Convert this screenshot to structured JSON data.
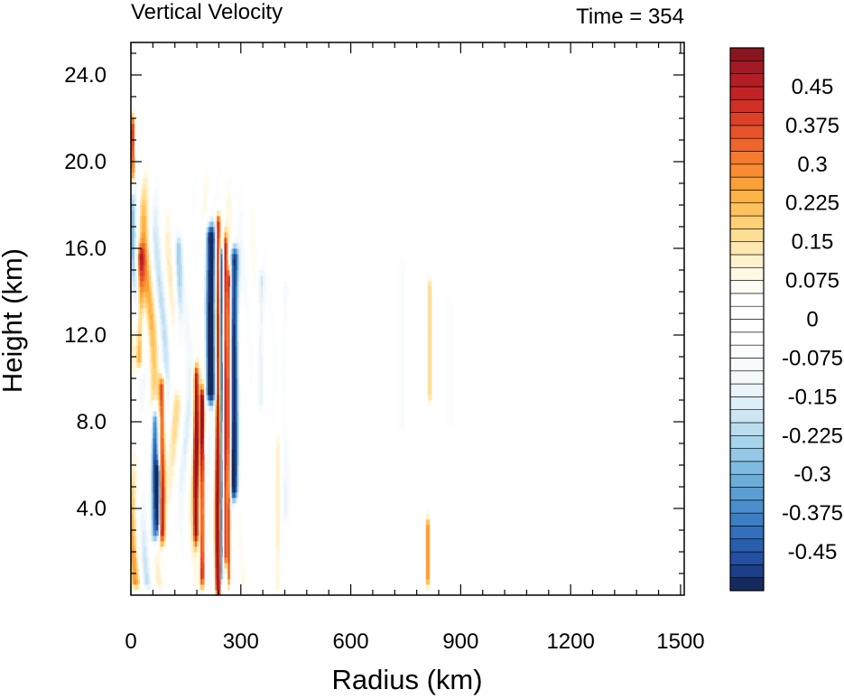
{
  "chart_data": {
    "type": "heatmap",
    "title": "Vertical Velocity",
    "subtitle": "Time = 354",
    "xlabel": "Radius (km)",
    "ylabel": "Height (km)",
    "xlim": [
      0,
      1510
    ],
    "ylim": [
      0,
      25.5
    ],
    "x_ticks": [
      0,
      300,
      600,
      900,
      1200,
      1500
    ],
    "x_tick_labels": [
      "0",
      "300",
      "600",
      "900",
      "1200",
      "1500"
    ],
    "y_ticks": [
      4,
      8,
      12,
      16,
      20,
      24
    ],
    "y_tick_labels": [
      "4.0",
      "8.0",
      "12.0",
      "16.0",
      "20.0",
      "24.0"
    ],
    "colorbar": {
      "levels": [
        -0.525,
        -0.5,
        -0.475,
        -0.45,
        -0.425,
        -0.4,
        -0.375,
        -0.35,
        -0.325,
        -0.3,
        -0.275,
        -0.25,
        -0.225,
        -0.2,
        -0.175,
        -0.15,
        -0.125,
        -0.1,
        -0.075,
        -0.05,
        -0.025,
        0,
        0.025,
        0.05,
        0.075,
        0.1,
        0.125,
        0.15,
        0.175,
        0.2,
        0.225,
        0.25,
        0.275,
        0.3,
        0.325,
        0.35,
        0.375,
        0.4,
        0.425,
        0.45,
        0.475,
        0.5,
        0.525
      ],
      "labels": [
        "-0.45",
        "-0.375",
        "-0.3",
        "-0.225",
        "-0.15",
        "-0.075",
        "0",
        "0.075",
        "0.15",
        "0.225",
        "0.3",
        "0.375",
        "0.45"
      ],
      "label_values": [
        -0.45,
        -0.375,
        -0.3,
        -0.225,
        -0.15,
        -0.075,
        0,
        0.075,
        0.15,
        0.225,
        0.3,
        0.375,
        0.45
      ],
      "colors": [
        "#172a5e",
        "#1d3f87",
        "#2350a0",
        "#2a5fae",
        "#336fba",
        "#3c7fc4",
        "#4a8fcc",
        "#5a9fd4",
        "#6cadda",
        "#7fbbe0",
        "#93c8e6",
        "#a7d3eb",
        "#bbddf0",
        "#cde6f4",
        "#ddeef8",
        "#eaf4fa",
        "#f3f9fc",
        "#f8fbfd",
        "#fcfdfe",
        "#ffffff",
        "#ffffff",
        "#ffffff",
        "#ffffff",
        "#fffdf3",
        "#fff8e3",
        "#fff1cc",
        "#ffe8b0",
        "#ffdd93",
        "#ffd076",
        "#ffc25d",
        "#fdb246",
        "#fca039",
        "#fa8c33",
        "#f57a2f",
        "#ee662c",
        "#e6532a",
        "#dc4128",
        "#d03026",
        "#c42325",
        "#b51d25",
        "#a31a24",
        "#8a1620"
      ]
    },
    "field_features": [
      {
        "sign": 1,
        "r_center": 238,
        "r_halfwidth": 7,
        "z_bottom": 0.5,
        "z_top": 17.0,
        "amplitude": 0.6
      },
      {
        "sign": -1,
        "r_center": 218,
        "r_halfwidth": 14,
        "z_bottom": 9.5,
        "z_top": 16.5,
        "amplitude": 0.6
      },
      {
        "sign": -1,
        "r_center": 282,
        "r_halfwidth": 12,
        "z_bottom": 5.0,
        "z_top": 15.5,
        "amplitude": 0.55
      },
      {
        "sign": 1,
        "r_center": 258,
        "r_halfwidth": 6,
        "z_bottom": 2.0,
        "z_top": 16.0,
        "amplitude": 0.45
      },
      {
        "sign": -1,
        "r_center": 248,
        "r_halfwidth": 5,
        "z_bottom": 1.0,
        "z_top": 15.5,
        "amplitude": 0.5
      },
      {
        "sign": 1,
        "r_center": 268,
        "r_halfwidth": 5,
        "z_bottom": 1.0,
        "z_top": 14.5,
        "amplitude": 0.45
      },
      {
        "sign": 1,
        "r_center": 195,
        "r_halfwidth": 6,
        "z_bottom": 1.0,
        "z_top": 9.0,
        "amplitude": 0.5
      },
      {
        "sign": 1,
        "r_center": 178,
        "r_halfwidth": 7,
        "z_bottom": 3.0,
        "z_top": 10.0,
        "amplitude": 0.5
      },
      {
        "sign": 1,
        "r_center": 85,
        "r_halfwidth": 9,
        "z_bottom": 3.0,
        "z_top": 9.5,
        "amplitude": 0.5
      },
      {
        "sign": -1,
        "r_center": 65,
        "r_halfwidth": 10,
        "z_bottom": 3.0,
        "z_top": 8.0,
        "amplitude": 0.45
      },
      {
        "sign": -1,
        "r_center": 75,
        "r_halfwidth": 6,
        "z_bottom": 3.5,
        "z_top": 5.5,
        "amplitude": 0.5
      },
      {
        "sign": 1,
        "r_center": 25,
        "r_halfwidth": 11,
        "z_bottom": 11.0,
        "z_top": 15.5,
        "amplitude": 0.4
      },
      {
        "sign": 1,
        "r_center": 5,
        "r_halfwidth": 6,
        "z_bottom": 19.5,
        "z_top": 21.5,
        "amplitude": 0.45
      },
      {
        "sign": -1,
        "r_center": 130,
        "r_halfwidth": 12,
        "z_bottom": 10.0,
        "z_top": 16.0,
        "amplitude": 0.2
      },
      {
        "sign": -1,
        "r_center": 355,
        "r_halfwidth": 10,
        "z_bottom": 9.0,
        "z_top": 14.5,
        "amplitude": 0.2
      },
      {
        "sign": 1,
        "r_center": 400,
        "r_halfwidth": 5,
        "z_bottom": 0.5,
        "z_top": 7.0,
        "amplitude": 0.12
      },
      {
        "sign": -1,
        "r_center": 420,
        "r_halfwidth": 12,
        "z_bottom": 4.0,
        "z_top": 14.0,
        "amplitude": 0.12
      },
      {
        "sign": -1,
        "r_center": 740,
        "r_halfwidth": 18,
        "z_bottom": 8.0,
        "z_top": 15.0,
        "amplitude": 0.08
      },
      {
        "sign": 1,
        "r_center": 815,
        "r_halfwidth": 5,
        "z_bottom": 9.5,
        "z_top": 14.0,
        "amplitude": 0.22
      },
      {
        "sign": -1,
        "r_center": 870,
        "r_halfwidth": 20,
        "z_bottom": 8.0,
        "z_top": 13.5,
        "amplitude": 0.06
      },
      {
        "sign": 1,
        "r_center": 810,
        "r_halfwidth": 4,
        "z_bottom": 1.0,
        "z_top": 3.0,
        "amplitude": 0.4
      }
    ]
  }
}
